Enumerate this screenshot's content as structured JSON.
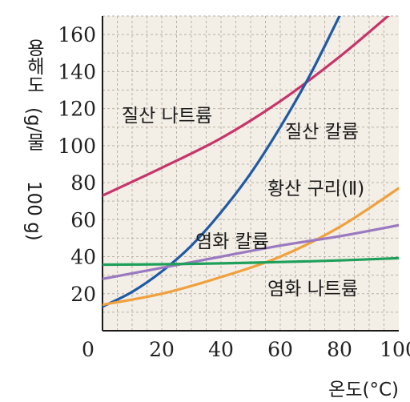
{
  "chart_data": {
    "type": "line",
    "xlabel": "온도(°C)",
    "ylabel_lines": [
      "용해도",
      "(g/물",
      "100 g)"
    ],
    "xlim": [
      0,
      100
    ],
    "ylim": [
      0,
      170
    ],
    "x_ticks": [
      0,
      20,
      40,
      60,
      80,
      100
    ],
    "y_ticks": [
      20,
      40,
      60,
      80,
      100,
      120,
      140,
      160
    ],
    "grid": true,
    "series": [
      {
        "name": "질산 나트륨",
        "color": "#c8346a",
        "x": [
          0,
          20,
          40,
          60,
          80,
          100
        ],
        "y": [
          73,
          88,
          104,
          124,
          148,
          175
        ]
      },
      {
        "name": "질산 칼륨",
        "color": "#1f5aa6",
        "x": [
          0,
          10,
          20,
          30,
          40,
          50,
          60,
          70,
          80
        ],
        "y": [
          13,
          21,
          32,
          46,
          64,
          85,
          110,
          138,
          170
        ]
      },
      {
        "name": "황산 구리(Ⅱ)",
        "color": "#f0a03c",
        "x": [
          0,
          20,
          40,
          60,
          80,
          100
        ],
        "y": [
          14,
          20,
          29,
          40,
          56,
          77
        ]
      },
      {
        "name": "염화 칼륨",
        "color": "#9a79c0",
        "x": [
          0,
          20,
          40,
          60,
          80,
          100
        ],
        "y": [
          28,
          34,
          40,
          46,
          51,
          57
        ]
      },
      {
        "name": "염화 나트륨",
        "color": "#1ea05a",
        "x": [
          0,
          20,
          40,
          60,
          80,
          100
        ],
        "y": [
          35.7,
          35.9,
          36.4,
          37.1,
          38.0,
          39.2
        ]
      }
    ]
  }
}
